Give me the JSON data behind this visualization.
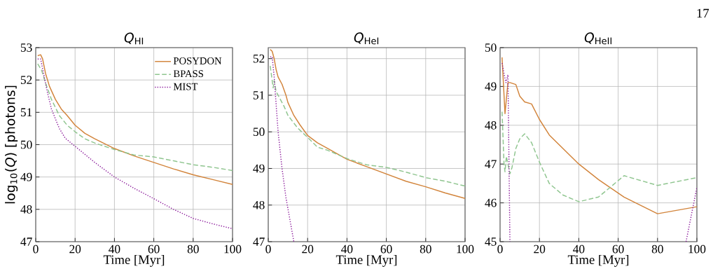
{
  "chart_data": [
    {
      "type": "line",
      "title": "*Q*$_{HI}$",
      "xlabel": "Time [Myr]",
      "ylabel": "log$_{10}$(*Q*) [photons]",
      "xlim": [
        0,
        100
      ],
      "ylim": [
        47,
        53
      ],
      "xticks": [
        0,
        20,
        40,
        60,
        80,
        100
      ],
      "yticks": [
        47,
        48,
        49,
        50,
        51,
        52,
        53
      ],
      "grid": true,
      "legend": "top right",
      "series": [
        {
          "name": "POSYDON",
          "color": "#d2843b",
          "line_style": "solid",
          "x": [
            1,
            2.5,
            3.5,
            5,
            7,
            10,
            13,
            16,
            20,
            25,
            30,
            40,
            50,
            60,
            70,
            80,
            90,
            100
          ],
          "values": [
            52.75,
            52.78,
            52.65,
            52.2,
            51.8,
            51.4,
            51.1,
            50.9,
            50.6,
            50.35,
            50.18,
            49.88,
            49.65,
            49.45,
            49.25,
            49.07,
            48.92,
            48.77
          ]
        },
        {
          "name": "BPASS",
          "color": "#8fc58f",
          "line_style": "dashed",
          "x": [
            1,
            3,
            5,
            8,
            12,
            16,
            20,
            25,
            30,
            40,
            50,
            60,
            70,
            80,
            90,
            100
          ],
          "values": [
            52.5,
            52.3,
            51.9,
            51.4,
            50.9,
            50.6,
            50.4,
            50.18,
            50.05,
            49.85,
            49.68,
            49.62,
            49.5,
            49.38,
            49.3,
            49.2
          ]
        },
        {
          "name": "MIST",
          "color": "#8b1a9b",
          "line_style": "dotted",
          "x": [
            1,
            2.5,
            4,
            6,
            8,
            10,
            12,
            15,
            20,
            30,
            40,
            50,
            60,
            70,
            80,
            90,
            100
          ],
          "values": [
            52.65,
            52.65,
            52.2,
            51.6,
            51.1,
            50.8,
            50.5,
            50.2,
            49.95,
            49.45,
            49.0,
            48.65,
            48.33,
            48.0,
            47.72,
            47.55,
            47.4
          ]
        }
      ]
    },
    {
      "type": "line",
      "title": "*Q*$_{HeI}$",
      "xlabel": "Time [Myr]",
      "xlim": [
        0,
        100
      ],
      "ylim": [
        47,
        52.3
      ],
      "xticks": [
        0,
        20,
        40,
        60,
        80,
        100
      ],
      "yticks": [
        47,
        48,
        49,
        50,
        51,
        52
      ],
      "grid": true,
      "series": [
        {
          "color": "#d2843b",
          "line_style": "solid",
          "x": [
            1,
            2,
            3,
            4,
            5,
            7,
            9,
            10,
            13,
            16,
            20,
            25,
            30,
            40,
            50,
            60,
            70,
            80,
            90,
            100
          ],
          "values": [
            52.25,
            52.2,
            52.0,
            51.7,
            51.5,
            51.3,
            51.0,
            50.8,
            50.45,
            50.2,
            49.9,
            49.7,
            49.55,
            49.25,
            49.05,
            48.85,
            48.65,
            48.5,
            48.33,
            48.18
          ]
        },
        {
          "color": "#8fc58f",
          "line_style": "dashed",
          "x": [
            1,
            2.5,
            3,
            4,
            5,
            8,
            10,
            15,
            20,
            25,
            30,
            40,
            50,
            60,
            70,
            80,
            90,
            100
          ],
          "values": [
            51.8,
            51.2,
            51.4,
            51.1,
            51.0,
            50.7,
            50.45,
            50.1,
            49.85,
            49.58,
            49.5,
            49.27,
            49.1,
            49.03,
            48.9,
            48.75,
            48.65,
            48.52
          ]
        },
        {
          "color": "#8b1a9b",
          "line_style": "dotted",
          "x": [
            1,
            2,
            3,
            5,
            7,
            9,
            11,
            13
          ],
          "values": [
            52.05,
            52.05,
            51.5,
            50.0,
            49.0,
            48.2,
            47.6,
            47.0
          ]
        }
      ]
    },
    {
      "type": "line",
      "title": "*Q*$_{HeII}$",
      "xlabel": "Time [Myr]",
      "xlim": [
        0,
        100
      ],
      "ylim": [
        45,
        50
      ],
      "xticks": [
        0,
        20,
        40,
        60,
        80,
        100
      ],
      "yticks": [
        45,
        46,
        47,
        48,
        49,
        50
      ],
      "grid": true,
      "annotations": [
        "17"
      ],
      "series": [
        {
          "color": "#d2843b",
          "line_style": "solid",
          "x": [
            1,
            2.5,
            4,
            5,
            8,
            10,
            12.5,
            16,
            20,
            25,
            40,
            50,
            63,
            80,
            100
          ],
          "values": [
            49.75,
            48.3,
            49.1,
            49.1,
            49.05,
            48.75,
            48.6,
            48.55,
            48.15,
            47.75,
            47.0,
            46.6,
            46.15,
            45.72,
            45.9
          ]
        },
        {
          "color": "#8fc58f",
          "line_style": "dashed",
          "x": [
            1,
            2,
            2.5,
            3.2,
            4,
            5,
            6,
            8,
            10,
            12.5,
            16,
            20,
            25,
            32,
            40,
            50,
            63,
            80,
            100
          ],
          "values": [
            48.35,
            47.0,
            46.8,
            47.2,
            47.0,
            46.75,
            46.9,
            47.4,
            47.65,
            47.78,
            47.55,
            47.05,
            46.5,
            46.2,
            46.03,
            46.15,
            46.7,
            46.45,
            46.65
          ]
        },
        {
          "color": "#8b1a9b",
          "line_style": "dotted",
          "x": [
            1,
            2.5,
            3,
            4,
            5,
            50,
            94.5,
            100
          ],
          "values": [
            49.6,
            49.2,
            49.1,
            49.3,
            45.0,
            null,
            45.0,
            46.4
          ]
        }
      ]
    }
  ]
}
